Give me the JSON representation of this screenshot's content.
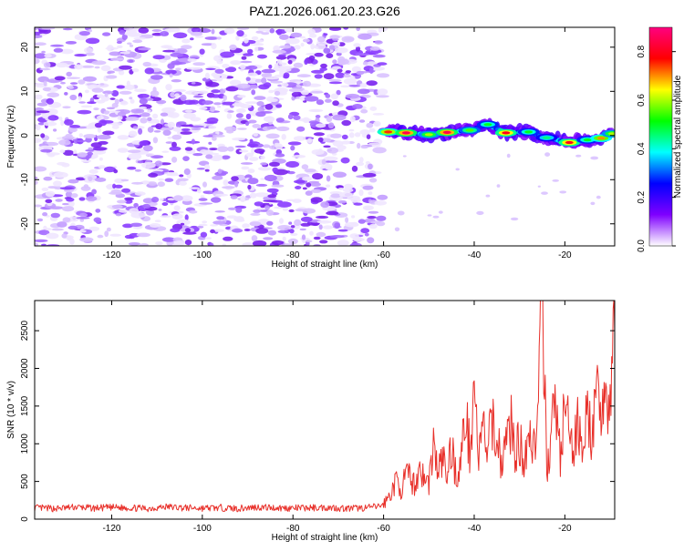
{
  "page_title": "PAZ1.2026.061.20.23.G26",
  "chart_data": [
    {
      "type": "heatmap",
      "title": "PAZ1.2026.061.20.23.G26",
      "xlabel": "Height of straight line (km)",
      "ylabel": "Frequency (Hz)",
      "xlim": [
        -137,
        -9
      ],
      "ylim": [
        -25,
        24.5
      ],
      "x_ticks": [
        -120,
        -100,
        -80,
        -60,
        -40,
        -20
      ],
      "y_ticks": [
        -20,
        -10,
        0,
        10,
        20
      ],
      "x_tick_labels": [
        "-120",
        "-100",
        "-80",
        "-60",
        "-40",
        "-20"
      ],
      "y_tick_labels": [
        "-20",
        "-10",
        "0",
        "10",
        "20"
      ],
      "noise_region": {
        "x_from": -137,
        "x_to": -60,
        "description": "broadband weak noise (normalized amplitude 0.0-0.2)"
      },
      "signal_track": [
        {
          "x": -59,
          "freq": 0.8,
          "amp": 0.75
        },
        {
          "x": -55,
          "freq": 0.6,
          "amp": 0.85
        },
        {
          "x": -50,
          "freq": 0.2,
          "amp": 0.6
        },
        {
          "x": -46,
          "freq": 0.7,
          "amp": 0.85
        },
        {
          "x": -41,
          "freq": 1.2,
          "amp": 0.55
        },
        {
          "x": -37,
          "freq": 2.5,
          "amp": 0.5
        },
        {
          "x": -33,
          "freq": 0.6,
          "amp": 0.8
        },
        {
          "x": -28,
          "freq": 0.8,
          "amp": 0.5
        },
        {
          "x": -24,
          "freq": -0.5,
          "amp": 0.45
        },
        {
          "x": -19,
          "freq": -1.6,
          "amp": 0.8
        },
        {
          "x": -15,
          "freq": -1.0,
          "amp": 0.5
        },
        {
          "x": -12,
          "freq": -0.6,
          "amp": 0.7
        },
        {
          "x": -9.5,
          "freq": 0.4,
          "amp": 0.6
        }
      ],
      "colorbar": {
        "label": "Normalized spectral amplitude",
        "range": [
          0,
          0.9
        ],
        "ticks": [
          0.0,
          0.2,
          0.4,
          0.6,
          0.8
        ],
        "tick_labels": [
          "0.0",
          "0.2",
          "0.4",
          "0.6",
          "0.8"
        ],
        "colors": [
          "#ffffff",
          "#7f00ff",
          "#0000ff",
          "#00ffff",
          "#00ff00",
          "#ffff00",
          "#ff0000",
          "#ff0080"
        ]
      }
    },
    {
      "type": "line",
      "xlabel": "Height of straight line (km)",
      "ylabel": "SNR (10 * v/v)",
      "xlim": [
        -137,
        -9
      ],
      "ylim": [
        0,
        2900
      ],
      "x_ticks": [
        -120,
        -100,
        -80,
        -60,
        -40,
        -20
      ],
      "y_ticks": [
        0,
        500,
        1000,
        1500,
        2000,
        2500
      ],
      "x_tick_labels": [
        "-120",
        "-100",
        "-80",
        "-60",
        "-40",
        "-20"
      ],
      "y_tick_labels": [
        "0",
        "500",
        "1000",
        "1500",
        "2000",
        "2500"
      ],
      "color": "#e8302a",
      "series": [
        {
          "name": "SNR",
          "x": [
            -137,
            -132,
            -128,
            -124,
            -120,
            -116,
            -112,
            -108,
            -104,
            -100,
            -96,
            -92,
            -88,
            -84,
            -80,
            -76,
            -72,
            -68,
            -64,
            -61,
            -60,
            -59,
            -58,
            -57,
            -56,
            -55,
            -54,
            -53,
            -52,
            -51,
            -50,
            -49,
            -48,
            -47,
            -46,
            -45,
            -44,
            -43,
            -42,
            -41,
            -40,
            -39,
            -38,
            -37,
            -36,
            -35,
            -34,
            -33,
            -32,
            -31,
            -30,
            -29,
            -28,
            -27,
            -26,
            -25,
            -24,
            -23,
            -22,
            -21,
            -20,
            -19,
            -18,
            -17,
            -16,
            -15,
            -14,
            -13,
            -12,
            -11,
            -10,
            -9.5,
            -9
          ],
          "y": [
            150,
            140,
            160,
            145,
            155,
            150,
            140,
            165,
            150,
            145,
            150,
            140,
            160,
            150,
            145,
            150,
            155,
            140,
            150,
            170,
            200,
            280,
            400,
            520,
            380,
            600,
            520,
            450,
            700,
            520,
            480,
            1000,
            600,
            820,
            560,
            1000,
            560,
            720,
            1400,
            920,
            1800,
            800,
            1200,
            900,
            1300,
            1100,
            760,
            1000,
            1300,
            900,
            1000,
            800,
            1200,
            950,
            1300,
            2880,
            700,
            1100,
            1600,
            800,
            1500,
            1100,
            900,
            1300,
            1050,
            1350,
            1100,
            1500,
            1600,
            1700,
            1350,
            2100,
            2480
          ]
        }
      ]
    }
  ]
}
